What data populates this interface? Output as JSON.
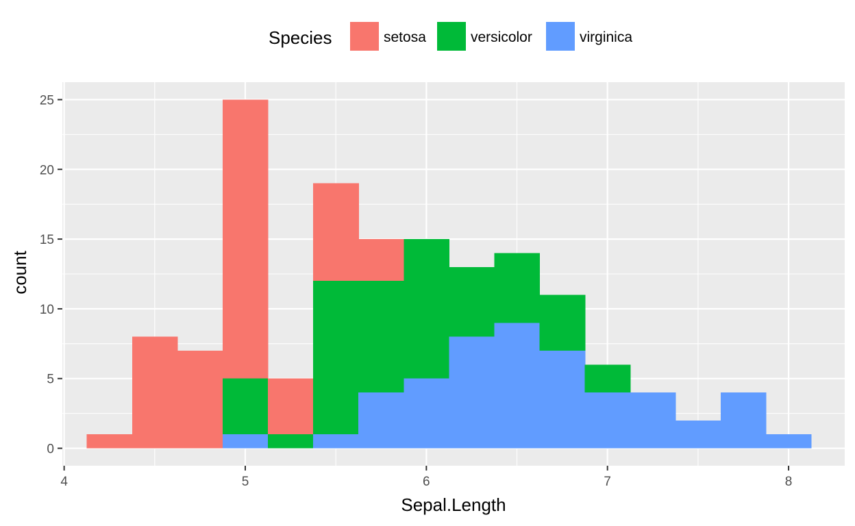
{
  "chart_data": {
    "type": "bar",
    "subtype": "stacked-histogram",
    "xlabel": "Sepal.Length",
    "ylabel": "count",
    "xlim": [
      3.99,
      8.31
    ],
    "ylim": [
      -1.25,
      26.25
    ],
    "x_ticks": [
      4,
      5,
      6,
      7,
      8
    ],
    "x_tick_labels": [
      "4",
      "5",
      "6",
      "7",
      "8"
    ],
    "y_ticks": [
      0,
      5,
      10,
      15,
      20,
      25
    ],
    "y_tick_labels": [
      "0",
      "5",
      "10",
      "15",
      "20",
      "25"
    ],
    "bin_edges": [
      4.125,
      4.375,
      4.625,
      4.875,
      5.125,
      5.375,
      5.625,
      5.875,
      6.125,
      6.375,
      6.625,
      6.875,
      7.125,
      7.375,
      7.625,
      7.875,
      8.125
    ],
    "stack_order": [
      "virginica",
      "versicolor",
      "setosa"
    ],
    "legend": {
      "title": "Species",
      "position": "top"
    },
    "grid": true,
    "panel_background": "#ebebeb",
    "series": [
      {
        "name": "setosa",
        "color": "#F8766D",
        "values": [
          1,
          8,
          7,
          20,
          4,
          7,
          3,
          0,
          0,
          0,
          0,
          0,
          0,
          0,
          0,
          0
        ]
      },
      {
        "name": "versicolor",
        "color": "#00BA38",
        "values": [
          0,
          0,
          0,
          4,
          1,
          11,
          8,
          10,
          5,
          5,
          4,
          2,
          0,
          0,
          0,
          0
        ]
      },
      {
        "name": "virginica",
        "color": "#619CFF",
        "values": [
          0,
          0,
          0,
          1,
          0,
          1,
          4,
          5,
          8,
          9,
          7,
          4,
          4,
          2,
          4,
          1
        ]
      }
    ]
  }
}
